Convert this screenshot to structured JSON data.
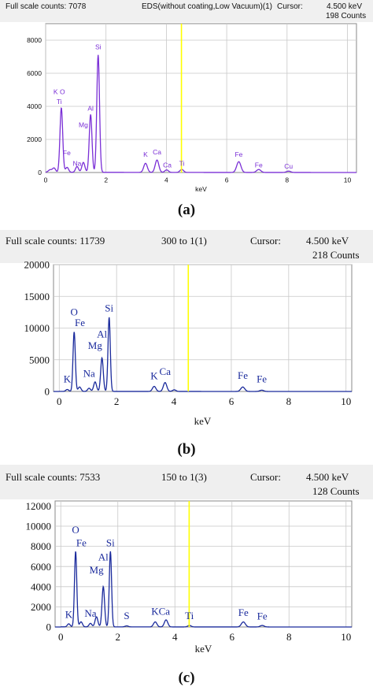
{
  "chart_data": [
    {
      "type": "line",
      "panel_label": "(a)",
      "header": {
        "full_scale": "Full scale counts: 7078",
        "title": "EDS(without coating,Low Vacuum)(1)",
        "cursor_label": "Cursor:",
        "cursor_value": "4.500 keV",
        "counts": "198 Counts"
      },
      "xlabel": "keV",
      "xlim": [
        0,
        10.3
      ],
      "ylim": [
        0,
        9000
      ],
      "x_ticks": [
        0,
        2,
        4,
        6,
        8,
        10
      ],
      "y_ticks": [
        0,
        2000,
        4000,
        6000,
        8000
      ],
      "cursor_kev": 4.5,
      "line_color": "#7a2fd6",
      "peaks": [
        {
          "x": 0.15,
          "y": 150,
          "w": 0.06
        },
        {
          "x": 0.28,
          "y": 250,
          "w": 0.05
        },
        {
          "x": 0.52,
          "y": 3900,
          "w": 0.045
        },
        {
          "x": 0.71,
          "y": 300,
          "w": 0.05
        },
        {
          "x": 1.04,
          "y": 350,
          "w": 0.05
        },
        {
          "x": 1.25,
          "y": 600,
          "w": 0.05
        },
        {
          "x": 1.49,
          "y": 3500,
          "w": 0.045
        },
        {
          "x": 1.74,
          "y": 7100,
          "w": 0.045
        },
        {
          "x": 3.31,
          "y": 550,
          "w": 0.06
        },
        {
          "x": 3.69,
          "y": 750,
          "w": 0.06
        },
        {
          "x": 4.01,
          "y": 150,
          "w": 0.06
        },
        {
          "x": 4.51,
          "y": 180,
          "w": 0.06
        },
        {
          "x": 6.4,
          "y": 650,
          "w": 0.07
        },
        {
          "x": 7.06,
          "y": 180,
          "w": 0.07
        },
        {
          "x": 8.05,
          "y": 80,
          "w": 0.07
        }
      ],
      "annotations": [
        {
          "text": "K O",
          "x": 0.45,
          "y": 4750
        },
        {
          "text": "Ti",
          "x": 0.45,
          "y": 4150
        },
        {
          "text": "Fe",
          "x": 0.7,
          "y": 1050
        },
        {
          "text": "Na",
          "x": 1.04,
          "y": 400
        },
        {
          "text": "Al",
          "x": 1.49,
          "y": 3750
        },
        {
          "text": "Mg",
          "x": 1.25,
          "y": 2750
        },
        {
          "text": "Si",
          "x": 1.74,
          "y": 7450
        },
        {
          "text": "K",
          "x": 3.31,
          "y": 950
        },
        {
          "text": "Ca",
          "x": 3.69,
          "y": 1100
        },
        {
          "text": "Ca",
          "x": 4.03,
          "y": 300
        },
        {
          "text": "Ti",
          "x": 4.51,
          "y": 400
        },
        {
          "text": "Fe",
          "x": 6.4,
          "y": 950
        },
        {
          "text": "Fe",
          "x": 7.06,
          "y": 300
        },
        {
          "text": "Cu",
          "x": 8.05,
          "y": 250
        }
      ]
    },
    {
      "type": "line",
      "panel_label": "(b)",
      "header": {
        "full_scale": "Full scale counts: 11739",
        "title": "300 to 1(1)",
        "cursor_label": "Cursor:",
        "cursor_value": "4.500 keV",
        "counts": "218  Counts"
      },
      "xlabel": "keV",
      "xlim": [
        -0.2,
        10.2
      ],
      "ylim": [
        0,
        20000
      ],
      "x_ticks": [
        0,
        2,
        4,
        6,
        8,
        10
      ],
      "y_ticks": [
        0,
        5000,
        10000,
        15000,
        20000
      ],
      "cursor_kev": 4.5,
      "line_color": "#1a2a9c",
      "peaks": [
        {
          "x": 0.28,
          "y": 300,
          "w": 0.05
        },
        {
          "x": 0.52,
          "y": 9400,
          "w": 0.04
        },
        {
          "x": 0.71,
          "y": 700,
          "w": 0.05
        },
        {
          "x": 1.04,
          "y": 500,
          "w": 0.05
        },
        {
          "x": 1.25,
          "y": 1500,
          "w": 0.05
        },
        {
          "x": 1.49,
          "y": 5300,
          "w": 0.045
        },
        {
          "x": 1.74,
          "y": 11700,
          "w": 0.04
        },
        {
          "x": 3.31,
          "y": 800,
          "w": 0.06
        },
        {
          "x": 3.69,
          "y": 1400,
          "w": 0.06
        },
        {
          "x": 4.01,
          "y": 250,
          "w": 0.06
        },
        {
          "x": 6.4,
          "y": 700,
          "w": 0.07
        },
        {
          "x": 7.06,
          "y": 200,
          "w": 0.07
        }
      ],
      "annotations": [
        {
          "text": "K",
          "x": 0.28,
          "y": 1400
        },
        {
          "text": "O",
          "x": 0.52,
          "y": 12000
        },
        {
          "text": "Fe",
          "x": 0.72,
          "y": 10300
        },
        {
          "text": "Na",
          "x": 1.04,
          "y": 2300
        },
        {
          "text": "Al",
          "x": 1.49,
          "y": 8500
        },
        {
          "text": "Mg",
          "x": 1.25,
          "y": 6700
        },
        {
          "text": "Si",
          "x": 1.74,
          "y": 12600
        },
        {
          "text": "K",
          "x": 3.31,
          "y": 1900
        },
        {
          "text": "Ca",
          "x": 3.69,
          "y": 2600
        },
        {
          "text": "Fe",
          "x": 6.4,
          "y": 2000
        },
        {
          "text": "Fe",
          "x": 7.06,
          "y": 1400
        }
      ]
    },
    {
      "type": "line",
      "panel_label": "(c)",
      "header": {
        "full_scale": "Full scale counts: 7533",
        "title": "150 to 1(3)",
        "cursor_label": "Cursor:",
        "cursor_value": "4.500 keV",
        "counts": "128  Counts"
      },
      "xlabel": "keV",
      "xlim": [
        -0.2,
        10.2
      ],
      "ylim": [
        0,
        12500
      ],
      "x_ticks": [
        0,
        2,
        4,
        6,
        8,
        10
      ],
      "y_ticks": [
        0,
        2000,
        4000,
        6000,
        8000,
        10000,
        12000
      ],
      "cursor_kev": 4.5,
      "line_color": "#1a2a9c",
      "peaks": [
        {
          "x": 0.28,
          "y": 300,
          "w": 0.05
        },
        {
          "x": 0.52,
          "y": 7500,
          "w": 0.04
        },
        {
          "x": 0.71,
          "y": 500,
          "w": 0.05
        },
        {
          "x": 1.04,
          "y": 350,
          "w": 0.05
        },
        {
          "x": 1.25,
          "y": 1000,
          "w": 0.05
        },
        {
          "x": 1.49,
          "y": 4000,
          "w": 0.045
        },
        {
          "x": 1.74,
          "y": 7500,
          "w": 0.04
        },
        {
          "x": 2.31,
          "y": 100,
          "w": 0.06
        },
        {
          "x": 3.31,
          "y": 500,
          "w": 0.06
        },
        {
          "x": 3.69,
          "y": 700,
          "w": 0.06
        },
        {
          "x": 4.51,
          "y": 150,
          "w": 0.06
        },
        {
          "x": 6.4,
          "y": 500,
          "w": 0.07
        },
        {
          "x": 7.06,
          "y": 150,
          "w": 0.07
        }
      ],
      "annotations": [
        {
          "text": "K",
          "x": 0.28,
          "y": 900
        },
        {
          "text": "O",
          "x": 0.52,
          "y": 9300
        },
        {
          "text": "Fe",
          "x": 0.72,
          "y": 8000
        },
        {
          "text": "Na",
          "x": 1.04,
          "y": 1000
        },
        {
          "text": "Al",
          "x": 1.49,
          "y": 6600
        },
        {
          "text": "Mg",
          "x": 1.25,
          "y": 5300
        },
        {
          "text": "Si",
          "x": 1.74,
          "y": 8000
        },
        {
          "text": "S",
          "x": 2.31,
          "y": 800
        },
        {
          "text": "KCa",
          "x": 3.5,
          "y": 1200
        },
        {
          "text": "Ti",
          "x": 4.51,
          "y": 800
        },
        {
          "text": "Fe",
          "x": 6.4,
          "y": 1100
        },
        {
          "text": "Fe",
          "x": 7.06,
          "y": 750
        }
      ]
    }
  ]
}
